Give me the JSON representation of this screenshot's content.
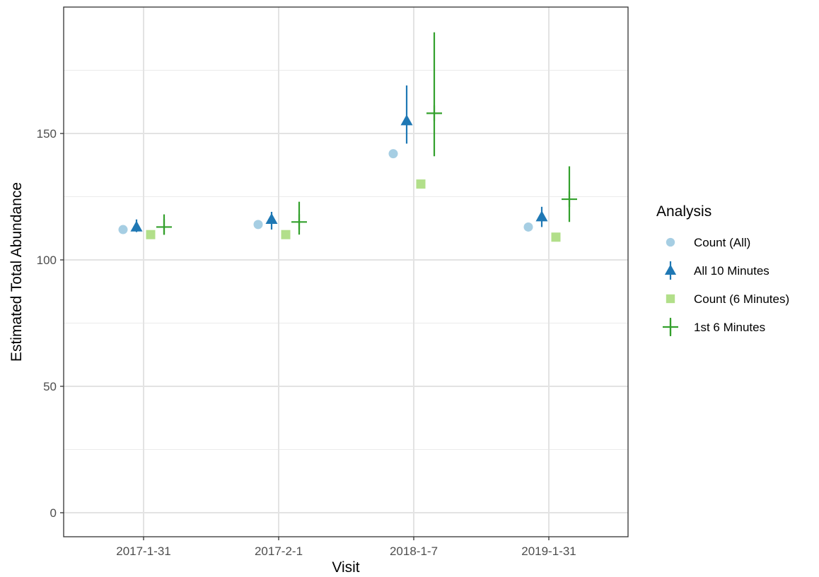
{
  "chart_data": {
    "type": "scatter",
    "title": "",
    "xlabel": "Visit",
    "ylabel": "Estimated Total Abundance",
    "categories": [
      "2017-1-31",
      "2017-2-1",
      "2018-1-7",
      "2019-1-31"
    ],
    "ylim": [
      -9.5,
      200
    ],
    "yticks": [
      0,
      50,
      100,
      150
    ],
    "grid": true,
    "legend": {
      "title": "Analysis",
      "position": "right"
    },
    "series": [
      {
        "name": "Count (All)",
        "shape": "circle",
        "color": "#a6cee3",
        "values": [
          112,
          114,
          142,
          113
        ]
      },
      {
        "name": "All 10 Minutes",
        "shape": "triangle",
        "color": "#1f78b4",
        "values": [
          113,
          116,
          155,
          117
        ],
        "lower": [
          111,
          112,
          146,
          113
        ],
        "upper": [
          116,
          119,
          169,
          121
        ]
      },
      {
        "name": "Count (6 Minutes)",
        "shape": "square",
        "color": "#b2df8a",
        "values": [
          110,
          110,
          130,
          109
        ]
      },
      {
        "name": "1st 6 Minutes",
        "shape": "cross",
        "color": "#33a02c",
        "values": [
          113,
          115,
          158,
          124
        ],
        "lower": [
          110,
          110,
          141,
          115
        ],
        "upper": [
          118,
          123,
          190,
          137
        ]
      }
    ]
  }
}
